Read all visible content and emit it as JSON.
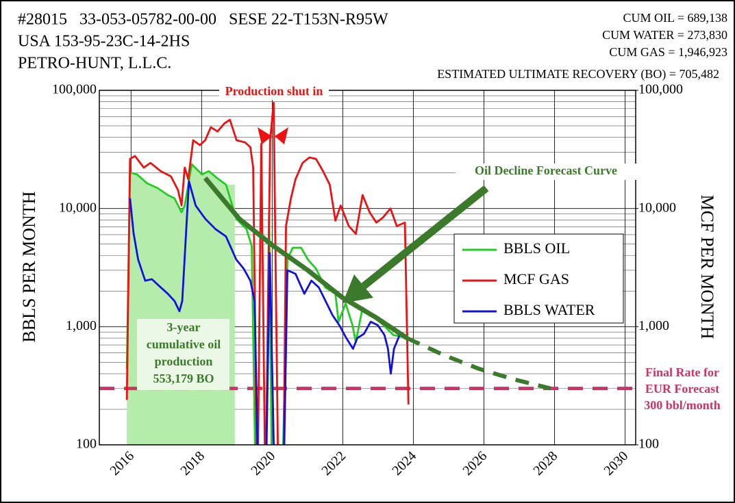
{
  "chart_data": {
    "type": "line",
    "header_left": [
      "#28015   33-053-05782-00-00   SESE 22-T153N-R95W",
      "USA 153-95-23C-14-2HS",
      "PETRO-HUNT, L.L.C."
    ],
    "header_right": [
      "CUM OIL = 689,138",
      "CUM WATER = 273,830",
      "CUM GAS = 1,946,923",
      "ESTIMATED ULTIMATE RECOVERY (BO) = 705,482"
    ],
    "ylabel": "BBLS PER MONTH",
    "y2label": "MCF PER MONTH",
    "log_scale": true,
    "grid": true,
    "xlim": [
      2015.1,
      2030.3
    ],
    "xticks": [
      2016,
      2018,
      2020,
      2022,
      2024,
      2026,
      2028,
      2030
    ],
    "ylim": [
      100,
      100000
    ],
    "yticks": [
      100,
      {
        "value": 1000,
        "label": "1,000"
      },
      {
        "value": 10000,
        "label": "10,000"
      },
      {
        "value": 100000,
        "label": "100,000"
      }
    ],
    "y2lim": [
      100,
      100000
    ],
    "y2ticks": [
      100,
      {
        "value": 1000,
        "label": "1,000"
      },
      {
        "value": 10000,
        "label": "10,000"
      },
      {
        "value": 100000,
        "label": "100,000"
      }
    ],
    "series": [
      {
        "name": "BBLS OIL",
        "color": "#22cc22",
        "x": [
          2015.88,
          2015.97,
          2016.17,
          2016.46,
          2016.75,
          2017.04,
          2017.23,
          2017.43,
          2017.52,
          2017.72,
          2018.01,
          2018.2,
          2018.49,
          2018.69,
          2018.98,
          2019.27,
          2019.42,
          2019.54,
          2019.81,
          2019.91,
          2020.0,
          2020.27,
          2020.43,
          2020.58,
          2020.82,
          2021.01,
          2021.24,
          2021.5,
          2021.79,
          2021.88,
          2022.08,
          2022.27,
          2022.37,
          2022.56,
          2022.85,
          2023.14,
          2023.43,
          2023.72,
          2023.86
        ],
        "values": [
          437,
          20200,
          19400,
          16300,
          14900,
          13000,
          12200,
          9300,
          10600,
          23700,
          19400,
          20700,
          17600,
          15900,
          8200,
          6700,
          4800,
          30,
          30,
          9300,
          30,
          30,
          3700,
          4650,
          4650,
          3700,
          3100,
          2150,
          1900,
          1100,
          1570,
          1040,
          740,
          1450,
          1220,
          1040,
          850,
          820,
          870
        ]
      },
      {
        "name": "MCF GAS",
        "color": "#ee1111",
        "axis": "y2",
        "x": [
          2015.88,
          2015.97,
          2016.11,
          2016.36,
          2016.55,
          2016.84,
          2017.13,
          2017.33,
          2017.43,
          2017.52,
          2017.62,
          2017.76,
          2017.95,
          2018.1,
          2018.26,
          2018.45,
          2018.65,
          2018.8,
          2018.99,
          2019.23,
          2019.38,
          2019.46,
          2019.58,
          2019.69,
          2019.81,
          2019.94,
          2020.04,
          2020.18,
          2020.31,
          2020.39,
          2020.53,
          2020.66,
          2020.86,
          2021.05,
          2021.24,
          2021.44,
          2021.63,
          2021.79,
          2021.94,
          2022.17,
          2022.37,
          2022.56,
          2022.76,
          2022.95,
          2023.14,
          2023.35,
          2023.53,
          2023.76,
          2023.86
        ],
        "values": [
          240,
          26300,
          27800,
          22200,
          24300,
          20700,
          18700,
          14300,
          10600,
          22200,
          17700,
          37800,
          34400,
          37800,
          48700,
          44900,
          52700,
          56300,
          37800,
          36300,
          33000,
          22200,
          30,
          35300,
          30,
          37800,
          78600,
          30,
          30,
          7100,
          12200,
          17700,
          24300,
          27000,
          26300,
          20700,
          15900,
          7900,
          10600,
          7100,
          6100,
          13000,
          9300,
          7600,
          8400,
          10000,
          7100,
          7600,
          220
        ]
      },
      {
        "name": "BBLS WATER",
        "color": "#1111dd",
        "x": [
          2015.97,
          2016.07,
          2016.2,
          2016.4,
          2016.59,
          2016.84,
          2017.04,
          2017.23,
          2017.37,
          2017.45,
          2017.64,
          2017.83,
          2018.1,
          2018.39,
          2018.69,
          2018.98,
          2019.19,
          2019.38,
          2019.5,
          2019.62,
          2019.81,
          2019.93,
          2020.08,
          2020.31,
          2020.43,
          2020.66,
          2020.91,
          2021.11,
          2021.32,
          2021.51,
          2021.71,
          2021.9,
          2022.1,
          2022.29,
          2022.41,
          2022.6,
          2022.79,
          2022.99,
          2023.18,
          2023.28,
          2023.36,
          2023.45,
          2023.61,
          2023.8
        ],
        "values": [
          12200,
          6200,
          3700,
          2450,
          2520,
          2150,
          1900,
          1650,
          1350,
          1650,
          17000,
          10600,
          8200,
          6700,
          5800,
          3700,
          3100,
          2450,
          1650,
          30,
          30,
          4200,
          30,
          30,
          3000,
          2800,
          1900,
          2450,
          2150,
          1650,
          1250,
          1030,
          800,
          650,
          800,
          870,
          1100,
          1030,
          850,
          650,
          400,
          650,
          850,
          800
        ]
      }
    ],
    "forecast": {
      "name": "Oil Decline Forecast Curve",
      "color": "#3a7a2a",
      "solid": {
        "x": [
          2018.1,
          2019.07,
          2020.04,
          2021.01,
          2021.98,
          2022.95,
          2023.82
        ],
        "values": [
          18100,
          8150,
          4800,
          3000,
          1770,
          1190,
          800
        ]
      },
      "dashed": {
        "x": [
          2023.82,
          2024.89,
          2025.86,
          2026.82,
          2027.89
        ],
        "values": [
          800,
          570,
          440,
          360,
          300
        ]
      }
    },
    "final_rate": {
      "value": 300,
      "color": "#cc3366",
      "label": [
        "Final Rate for",
        "EUR Forecast",
        "300 bbl/month"
      ]
    },
    "shut_in_label": "Production shut in",
    "cumulative": {
      "span": [
        2015.88,
        2018.94
      ],
      "label": [
        "3-year",
        "cumulative oil",
        "production",
        "553,179 BO"
      ]
    },
    "legend": "right"
  }
}
